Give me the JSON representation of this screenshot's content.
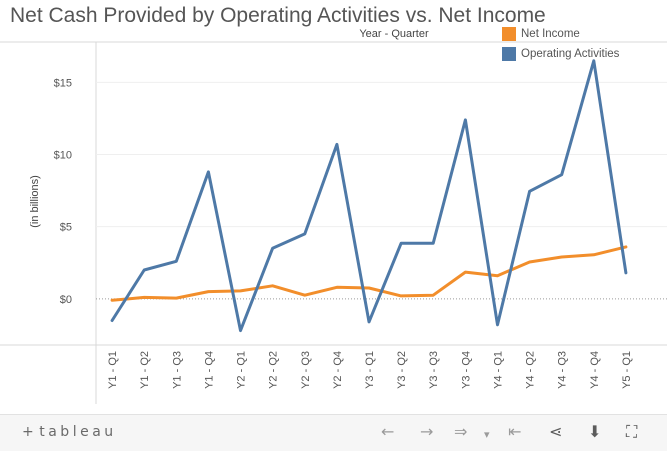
{
  "chart_data": {
    "type": "line",
    "title": "Net Cash Provided by Operating Activities vs. Net Income",
    "subtitle": "Year - Quarter",
    "ylabel": "(in billions)",
    "xlabel": "",
    "ylim": [
      -3.2,
      17.8
    ],
    "yticks": [
      0,
      5,
      10,
      15
    ],
    "ytick_labels": [
      "$0",
      "$5",
      "$10",
      "$15"
    ],
    "categories": [
      "Y1 - Q1",
      "Y1 - Q2",
      "Y1 - Q3",
      "Y1 - Q4",
      "Y2 - Q1",
      "Y2 - Q2",
      "Y2 - Q3",
      "Y2 - Q4",
      "Y3 - Q1",
      "Y3 - Q2",
      "Y3 - Q3",
      "Y3 - Q4",
      "Y4 - Q1",
      "Y4 - Q2",
      "Y4 - Q3",
      "Y4 - Q4",
      "Y5 - Q1"
    ],
    "series": [
      {
        "name": "Net Income",
        "color": "#f28e2b",
        "values": [
          -0.1,
          0.1,
          0.05,
          0.5,
          0.55,
          0.9,
          0.25,
          0.8,
          0.75,
          0.2,
          0.25,
          1.85,
          1.6,
          2.55,
          2.9,
          3.05,
          3.6
        ]
      },
      {
        "name": "Operating Activities",
        "color": "#4e79a7",
        "values": [
          -1.5,
          2.0,
          2.6,
          8.8,
          -2.2,
          3.5,
          4.5,
          10.7,
          -1.6,
          3.85,
          3.85,
          12.4,
          -1.8,
          7.45,
          8.6,
          16.5,
          1.8
        ]
      }
    ],
    "legend_position": "top-right"
  },
  "toolbar": {
    "brand": "tableau",
    "brand_plus": "+",
    "undo": "←",
    "redo": "→",
    "revert": "⇒",
    "revert_caret": "▾",
    "reset": "⇤",
    "share": "⋖",
    "download": "⬇",
    "fullscreen": "⛶"
  }
}
